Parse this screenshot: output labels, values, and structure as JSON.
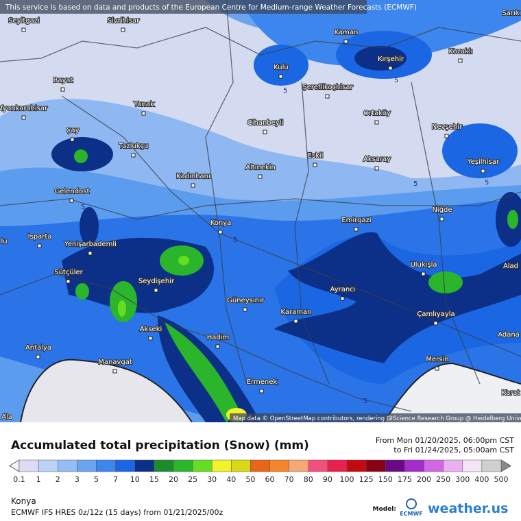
{
  "banner": "This service is based on data and products of the European Centre for Medium-range Weather Forecasts (ECMWF)",
  "map": {
    "cities": [
      "Sarık",
      "Seyitgazi",
      "Sivrihisar",
      "Kaman",
      "Kırşehir",
      "Kozaklı",
      "Kulu",
      "Bayat",
      "Şereflikoçhisar",
      "Yunak",
      "fyonkarahisar",
      "Cihanbeyli",
      "Ortaköy",
      "Nevşehir",
      "Çay",
      "Tuzlukçu",
      "Eskil",
      "Aksaray",
      "Yeşilhisar",
      "Altınekin",
      "Gelendost",
      "Kadınhanı",
      "Niğde",
      "Emirgazi",
      "Konya",
      "Isparta",
      "lu",
      "Yenişarbademli",
      "Ulukışla",
      "Alad",
      "Sütçüler",
      "Seydişehir",
      "Güneysınır",
      "Ayrancı",
      "Karaman",
      "Çamlıyayla",
      "Akseki",
      "Hadim",
      "Adana",
      "Antalya",
      "Manavgat",
      "Mersin",
      "Ermenek",
      "Karat",
      "Ala"
    ],
    "contour_labels": [
      5,
      5,
      5,
      5,
      5,
      5,
      5,
      5,
      5
    ],
    "attribution": "Map data © OpenStreetMap contributors, rendering GIScience Research Group @ Heidelberg University"
  },
  "legend": {
    "title": "Accumulated total precipitation (Snow) (mm)",
    "from": "From Mon 01/20/2025, 06:00pm CST",
    "to": "to Fri 01/24/2025, 05:00am CST",
    "levels": [
      0.1,
      1,
      2,
      3,
      5,
      7,
      10,
      15,
      20,
      25,
      30,
      40,
      50,
      60,
      70,
      80,
      90,
      100,
      125,
      150,
      175,
      200,
      250,
      300,
      400,
      500
    ],
    "colors": [
      "#dcdcf4",
      "#bcd2f7",
      "#93bdf4",
      "#6aa3f0",
      "#3d86ee",
      "#1b67e3",
      "#0c2f88",
      "#1e8a2a",
      "#2ab52a",
      "#66dd22",
      "#f2f22a",
      "#d8d814",
      "#e8651a",
      "#f5862a",
      "#f5a877",
      "#f0507a",
      "#e8204e",
      "#c40a10",
      "#8c0014",
      "#6a0a86",
      "#a52cc8",
      "#d366e4",
      "#eab0f2",
      "#f4e4f6",
      "#cfcfcf"
    ],
    "under_color": "#f4f4fa",
    "over_color": "#8a8a8a"
  },
  "footer": {
    "location": "Konya",
    "model_run": "ECMWF IFS HRES 0z/12z (15 days) from  01/21/2025/00z",
    "model_label": "Model:",
    "model_name": "ECMWF",
    "brand": "weather.us"
  }
}
